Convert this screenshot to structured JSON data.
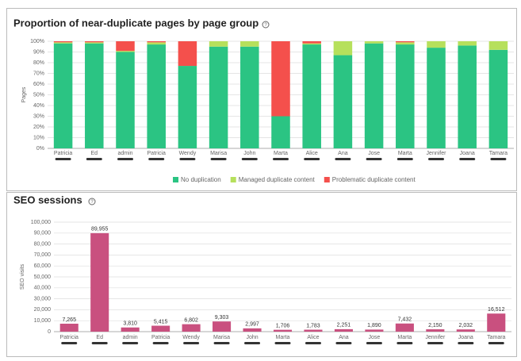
{
  "chart_data": [
    {
      "type": "bar",
      "stacked": true,
      "title": "Proportion of near-duplicate pages by page group",
      "y_label": "Pages",
      "categories": [
        "Patricia",
        "Ed",
        "admin",
        "Patricia",
        "Wendy",
        "Marisa",
        "John",
        "Marta",
        "Alice",
        "Ana",
        "Jose",
        "Marta",
        "Jennifer",
        "Joana",
        "Tamara"
      ],
      "series": [
        {
          "name": "No duplication",
          "color": "#2bc483",
          "values": [
            98,
            98,
            90,
            97,
            77,
            95,
            95,
            30,
            97,
            87,
            98,
            97,
            94,
            96,
            92
          ]
        },
        {
          "name": "Managed duplicate content",
          "color": "#b6e05c",
          "values": [
            1,
            1,
            1,
            2,
            0,
            5,
            5,
            0,
            1,
            13,
            2,
            2,
            6,
            4,
            8
          ]
        },
        {
          "name": "Problematic duplicate content",
          "color": "#f4504c",
          "values": [
            1,
            1,
            9,
            1,
            23,
            0,
            0,
            70,
            2,
            0,
            0,
            1,
            0,
            0,
            0
          ]
        }
      ],
      "ylim": [
        0,
        100
      ],
      "yticks": [
        {
          "value": 0,
          "label": "0%"
        },
        {
          "value": 10,
          "label": "10%"
        },
        {
          "value": 20,
          "label": "20%"
        },
        {
          "value": 30,
          "label": "30%"
        },
        {
          "value": 40,
          "label": "40%"
        },
        {
          "value": 50,
          "label": "50%"
        },
        {
          "value": 60,
          "label": "60%"
        },
        {
          "value": 70,
          "label": "70%"
        },
        {
          "value": 80,
          "label": "80%"
        },
        {
          "value": 90,
          "label": "90%"
        },
        {
          "value": 100,
          "label": "100%"
        }
      ],
      "grid": true,
      "legend": "bottom"
    },
    {
      "type": "bar",
      "title": "SEO sessions",
      "y_label": "SEO visits",
      "categories": [
        "Patricia",
        "Ed",
        "admin",
        "Patricia",
        "Wendy",
        "Marisa",
        "John",
        "Marta",
        "Alice",
        "Ana",
        "Jose",
        "Marta",
        "Jennifer",
        "Joana",
        "Tamara"
      ],
      "values": [
        7265,
        89955,
        3810,
        5415,
        6802,
        9303,
        2997,
        1706,
        1783,
        2251,
        1890,
        7432,
        2150,
        2032,
        16512
      ],
      "value_labels": [
        "7,265",
        "89,955",
        "3,810",
        "5,415",
        "6,802",
        "9,303",
        "2,997",
        "1,706",
        "1,783",
        "2,251",
        "1,890",
        "7,432",
        "2,150",
        "2,032",
        "16,512"
      ],
      "color": "#c9507f",
      "ylim": [
        0,
        100000
      ],
      "yticks": [
        0,
        {
          "value": 10000,
          "label": "10,000"
        },
        {
          "value": 20000,
          "label": "20,000"
        },
        {
          "value": 30000,
          "label": "30,000"
        },
        {
          "value": 40000,
          "label": "40,000"
        },
        {
          "value": 50000,
          "label": "50,000"
        },
        {
          "value": 60000,
          "label": "60,000"
        },
        {
          "value": 70000,
          "label": "70,000"
        },
        {
          "value": 80000,
          "label": "80,000"
        },
        {
          "value": 90000,
          "label": "90,000"
        },
        {
          "value": 100000,
          "label": "100,000"
        }
      ],
      "grid": true
    }
  ]
}
